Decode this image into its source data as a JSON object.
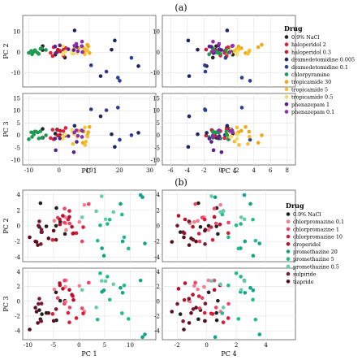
{
  "figure": {
    "panel_a_label": "(a)",
    "panel_b_label": "(b)",
    "legend_title": "Drug"
  },
  "chart_data": [
    {
      "type": "scatter",
      "panel": "(a)",
      "subplots": [
        {
          "xlabel": "PC 1",
          "ylabel": "PC 2",
          "xlim": [
            -12,
            32
          ],
          "ylim": [
            -17,
            18
          ],
          "xticks": [
            -10,
            0,
            10,
            20,
            30
          ],
          "yticks": [
            -10,
            0,
            10
          ]
        },
        {
          "xlabel": "PC 4",
          "ylabel": "PC 2",
          "xlim": [
            -7,
            9
          ],
          "ylim": [
            -17,
            18
          ],
          "xticks": [
            -6,
            -4,
            -2,
            0,
            2,
            4,
            6,
            8
          ],
          "yticks": [
            -10,
            0,
            10
          ]
        },
        {
          "xlabel": "PC 1",
          "ylabel": "PC 3",
          "xlim": [
            -12,
            32
          ],
          "ylim": [
            -12,
            17
          ],
          "xticks": [
            -10,
            0,
            10,
            20,
            30
          ],
          "yticks": [
            -10,
            -5,
            0,
            5,
            10,
            15
          ]
        },
        {
          "xlabel": "PC 4",
          "ylabel": "PC 3",
          "xlim": [
            -7,
            9
          ],
          "ylim": [
            -12,
            17
          ],
          "xticks": [
            -6,
            -4,
            -2,
            0,
            2,
            4,
            6,
            8
          ],
          "yticks": [
            -10,
            -5,
            0,
            5,
            10,
            15
          ]
        }
      ],
      "legend": {
        "title": "Drug",
        "placement": "right"
      },
      "series": [
        {
          "name": "0.9% NaCl",
          "color": "#222222"
        },
        {
          "name": "haloperidol 2",
          "color": "#e3203a"
        },
        {
          "name": "haloperidol 0.3",
          "color": "#c01f33"
        },
        {
          "name": "dexmedetomidine 0.005",
          "color": "#20245c"
        },
        {
          "name": "dexmedetomidine 0.1",
          "color": "#2c3e8f"
        },
        {
          "name": "chlorpyramine",
          "color": "#1e9a52"
        },
        {
          "name": "tropicamide 30",
          "color": "#f0a818"
        },
        {
          "name": "tropicamide 5",
          "color": "#f5c030"
        },
        {
          "name": "tropicamide 0.5",
          "color": "#f2dc6a"
        },
        {
          "name": "phenazepam 1",
          "color": "#5a1f8a"
        },
        {
          "name": "phenazepam 0.1",
          "color": "#8b2fb0"
        }
      ],
      "clusters": [
        {
          "s": 0,
          "n": 5,
          "pc1": [
            -6,
            2
          ],
          "pc2": [
            -3,
            3
          ],
          "pc3": [
            -2,
            3
          ],
          "pc4": [
            -1,
            1.5
          ]
        },
        {
          "s": 1,
          "n": 5,
          "pc1": [
            -3,
            3
          ],
          "pc2": [
            -2,
            3
          ],
          "pc3": [
            -2,
            4
          ],
          "pc4": [
            -1.5,
            1.5
          ]
        },
        {
          "s": 2,
          "n": 5,
          "pc1": [
            -2,
            2
          ],
          "pc2": [
            -1,
            3
          ],
          "pc3": [
            -1,
            3
          ],
          "pc4": [
            -2,
            1
          ]
        },
        {
          "s": 3,
          "n": 5,
          "pc1": [
            2,
            28
          ],
          "pc2": [
            -14,
            15
          ],
          "pc3": [
            -10,
            13
          ],
          "pc4": [
            -6,
            5
          ]
        },
        {
          "s": 4,
          "n": 5,
          "pc1": [
            4,
            30
          ],
          "pc2": [
            -14,
            12
          ],
          "pc3": [
            -8,
            14
          ],
          "pc4": [
            -5,
            6
          ]
        },
        {
          "s": 5,
          "n": 12,
          "pc1": [
            -10,
            -4
          ],
          "pc2": [
            -2,
            2
          ],
          "pc3": [
            -2,
            2
          ],
          "pc4": [
            -1.5,
            1
          ]
        },
        {
          "s": 6,
          "n": 6,
          "pc1": [
            6,
            12
          ],
          "pc2": [
            -1,
            4
          ],
          "pc3": [
            -4,
            5
          ],
          "pc4": [
            2,
            5
          ]
        },
        {
          "s": 7,
          "n": 6,
          "pc1": [
            4,
            10
          ],
          "pc2": [
            -2,
            4
          ],
          "pc3": [
            -4,
            4
          ],
          "pc4": [
            1,
            4
          ]
        },
        {
          "s": 8,
          "n": 6,
          "pc1": [
            1,
            6
          ],
          "pc2": [
            -1,
            3
          ],
          "pc3": [
            -2,
            3
          ],
          "pc4": [
            1,
            3
          ]
        },
        {
          "s": 9,
          "n": 6,
          "pc1": [
            -2,
            6
          ],
          "pc2": [
            -3,
            5
          ],
          "pc3": [
            -8,
            1
          ],
          "pc4": [
            -1.5,
            1
          ]
        },
        {
          "s": 10,
          "n": 6,
          "pc1": [
            2,
            8
          ],
          "pc2": [
            0,
            6
          ],
          "pc3": [
            -5,
            3
          ],
          "pc4": [
            -1,
            1.5
          ]
        }
      ]
    },
    {
      "type": "scatter",
      "panel": "(b)",
      "subplots": [
        {
          "xlabel": "PC 1",
          "ylabel": "PC 2",
          "xlim": [
            -11,
            15
          ],
          "ylim": [
            -4.6,
            4.6
          ],
          "xticks": [
            -10,
            -5,
            0,
            5,
            10
          ],
          "yticks": [
            -4,
            -2,
            0,
            2,
            4
          ]
        },
        {
          "xlabel": "PC 4",
          "ylabel": "PC 2",
          "xlim": [
            -3,
            6
          ],
          "ylim": [
            -4.6,
            4.6
          ],
          "xticks": [
            -2,
            0,
            2,
            4
          ],
          "yticks": [
            -4,
            -2,
            0,
            2,
            4
          ]
        },
        {
          "xlabel": "PC 1",
          "ylabel": "PC 3",
          "xlim": [
            -11,
            15
          ],
          "ylim": [
            -5.2,
            4.5
          ],
          "xticks": [
            -10,
            -5,
            0,
            5,
            10
          ],
          "yticks": [
            -4,
            -2,
            0,
            2,
            4
          ]
        },
        {
          "xlabel": "PC 4",
          "ylabel": "PC 3",
          "xlim": [
            -3,
            6
          ],
          "ylim": [
            -5.2,
            4.5
          ],
          "xticks": [
            -2,
            0,
            2,
            4
          ],
          "yticks": [
            -4,
            -2,
            0,
            2,
            4
          ]
        }
      ],
      "legend": {
        "title": "Drug",
        "placement": "right"
      },
      "series": [
        {
          "name": "0.9% NaCl",
          "color": "#222222"
        },
        {
          "name": "chlorpromazine 0.1",
          "color": "#f47d8e"
        },
        {
          "name": "chlorpromazine 1",
          "color": "#ee4466"
        },
        {
          "name": "chlorpromazine 10",
          "color": "#d81e3c"
        },
        {
          "name": "droperidol",
          "color": "#b8102a"
        },
        {
          "name": "promethazine 20",
          "color": "#11a585"
        },
        {
          "name": "promethazine 5",
          "color": "#24b98f"
        },
        {
          "name": "promethazine 0.5",
          "color": "#66ccaa"
        },
        {
          "name": "sulpiride",
          "color": "#7a1a32"
        },
        {
          "name": "tiapride",
          "color": "#5a0f1f"
        }
      ],
      "clusters": [
        {
          "s": 0,
          "n": 8,
          "pc1": [
            -10,
            -2
          ],
          "pc2": [
            -3,
            3
          ],
          "pc3": [
            -3,
            3
          ],
          "pc4": [
            -2.5,
            1
          ]
        },
        {
          "s": 1,
          "n": 6,
          "pc1": [
            -6,
            2
          ],
          "pc2": [
            -2,
            3
          ],
          "pc3": [
            -2,
            3
          ],
          "pc4": [
            -1.5,
            1
          ]
        },
        {
          "s": 2,
          "n": 6,
          "pc1": [
            -5,
            3
          ],
          "pc2": [
            -2,
            4
          ],
          "pc3": [
            -1,
            4
          ],
          "pc4": [
            -1,
            1.5
          ]
        },
        {
          "s": 3,
          "n": 6,
          "pc1": [
            -6,
            2
          ],
          "pc2": [
            -2,
            2
          ],
          "pc3": [
            -3,
            2
          ],
          "pc4": [
            -1,
            1.5
          ]
        },
        {
          "s": 4,
          "n": 6,
          "pc1": [
            -8,
            0
          ],
          "pc2": [
            -1,
            3
          ],
          "pc3": [
            -1,
            3
          ],
          "pc4": [
            -2,
            1
          ]
        },
        {
          "s": 5,
          "n": 7,
          "pc1": [
            3,
            13
          ],
          "pc2": [
            -4,
            4
          ],
          "pc3": [
            -5,
            3
          ],
          "pc4": [
            0.5,
            5
          ]
        },
        {
          "s": 6,
          "n": 7,
          "pc1": [
            2,
            10
          ],
          "pc2": [
            -3,
            4
          ],
          "pc3": [
            -3,
            4
          ],
          "pc4": [
            0.5,
            4
          ]
        },
        {
          "s": 7,
          "n": 5,
          "pc1": [
            0,
            8
          ],
          "pc2": [
            -1,
            4
          ],
          "pc3": [
            -1,
            4
          ],
          "pc4": [
            0,
            3
          ]
        },
        {
          "s": 8,
          "n": 6,
          "pc1": [
            -9,
            -3
          ],
          "pc2": [
            -3,
            1
          ],
          "pc3": [
            -3,
            1
          ],
          "pc4": [
            -2,
            0.5
          ]
        },
        {
          "s": 9,
          "n": 6,
          "pc1": [
            -10,
            -4
          ],
          "pc2": [
            -3,
            0
          ],
          "pc3": [
            -4,
            0
          ],
          "pc4": [
            -2.5,
            0
          ]
        }
      ]
    }
  ]
}
